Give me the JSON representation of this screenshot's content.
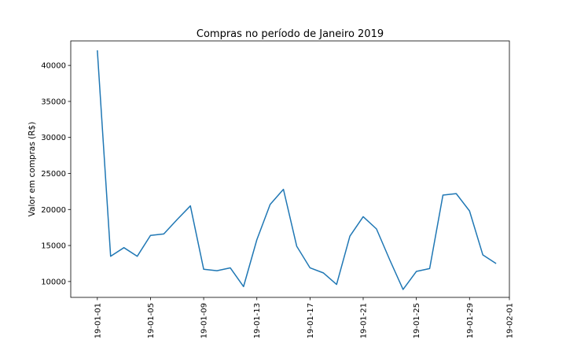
{
  "chart_data": {
    "type": "line",
    "title": "Compras no período de Janeiro 2019",
    "xlabel": "",
    "ylabel": "Valor em compras (R$)",
    "x_tick_labels": [
      "19-01-01",
      "19-01-05",
      "19-01-09",
      "19-01-13",
      "19-01-17",
      "19-01-21",
      "19-01-25",
      "19-01-29",
      "19-02-01"
    ],
    "y_tick_labels": [
      "10000",
      "15000",
      "20000",
      "25000",
      "30000",
      "35000",
      "40000"
    ],
    "ylim": [
      7800,
      43400
    ],
    "xlim": [
      "2018-12-30",
      "2019-02-01"
    ],
    "grid": false,
    "series": [
      {
        "name": "",
        "color": "#1f77b4",
        "x": [
          "2019-01-01",
          "2019-01-02",
          "2019-01-03",
          "2019-01-04",
          "2019-01-05",
          "2019-01-06",
          "2019-01-07",
          "2019-01-08",
          "2019-01-09",
          "2019-01-10",
          "2019-01-11",
          "2019-01-12",
          "2019-01-13",
          "2019-01-14",
          "2019-01-15",
          "2019-01-16",
          "2019-01-17",
          "2019-01-18",
          "2019-01-19",
          "2019-01-20",
          "2019-01-21",
          "2019-01-22",
          "2019-01-23",
          "2019-01-24",
          "2019-01-25",
          "2019-01-26",
          "2019-01-27",
          "2019-01-28",
          "2019-01-29",
          "2019-01-30",
          "2019-01-31"
        ],
        "values": [
          42100,
          13500,
          14700,
          13500,
          16400,
          16600,
          18600,
          20500,
          11700,
          11500,
          11900,
          9300,
          15800,
          20700,
          22800,
          14900,
          11900,
          11200,
          9600,
          16300,
          19000,
          17300,
          13000,
          8900,
          11400,
          11800,
          22000,
          22200,
          19800,
          13700,
          12500
        ]
      }
    ]
  }
}
